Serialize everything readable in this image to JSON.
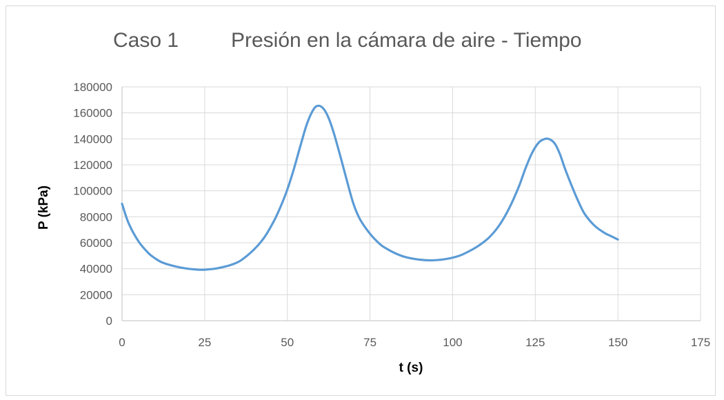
{
  "chart_data": {
    "type": "line",
    "title_left": "Caso 1",
    "title_right": "Presión en la cámara de aire - Tiempo",
    "xlabel": "t (s)",
    "ylabel": "P (kPa)",
    "xlim": [
      0,
      175
    ],
    "ylim": [
      0,
      180000
    ],
    "x_ticks": [
      0,
      25,
      50,
      75,
      100,
      125,
      150,
      175
    ],
    "y_ticks": [
      0,
      20000,
      40000,
      60000,
      80000,
      100000,
      120000,
      140000,
      160000,
      180000
    ],
    "x_tick_labels": [
      "0",
      "25",
      "50",
      "75",
      "100",
      "125",
      "150",
      "175"
    ],
    "y_tick_labels": [
      "0",
      "20000",
      "40000",
      "60000",
      "80000",
      "100000",
      "120000",
      "140000",
      "160000",
      "180000"
    ],
    "grid": true,
    "legend": "none",
    "series": [
      {
        "color": "#5b9bd5",
        "x": [
          0,
          2,
          5,
          8,
          10,
          12,
          15,
          18,
          20,
          22,
          24,
          26,
          28,
          30,
          33,
          36,
          40,
          43,
          46,
          48,
          50,
          52,
          54,
          56,
          58,
          59.5,
          61,
          62.5,
          64,
          66,
          68,
          70,
          72,
          75,
          78,
          80,
          83,
          86,
          90,
          94,
          98,
          102,
          105,
          108,
          111,
          114,
          117,
          120,
          122,
          124,
          126,
          128,
          129.5,
          131,
          132.5,
          134,
          136,
          138,
          140,
          143,
          146,
          148,
          150
        ],
        "y": [
          90000,
          75000,
          61000,
          52000,
          48000,
          45000,
          42500,
          40800,
          40000,
          39500,
          39200,
          39500,
          40000,
          41000,
          43000,
          46500,
          55000,
          64000,
          77000,
          88000,
          101000,
          117000,
          135000,
          152000,
          163000,
          165500,
          163000,
          156000,
          145000,
          127000,
          108000,
          90000,
          78000,
          67000,
          59000,
          55500,
          51500,
          48800,
          47000,
          46500,
          47500,
          50000,
          53500,
          58000,
          64000,
          73000,
          86000,
          103000,
          117000,
          129000,
          137000,
          140000,
          139500,
          136000,
          128000,
          117000,
          104000,
          92000,
          82000,
          73000,
          67500,
          65000,
          62500
        ]
      }
    ]
  }
}
